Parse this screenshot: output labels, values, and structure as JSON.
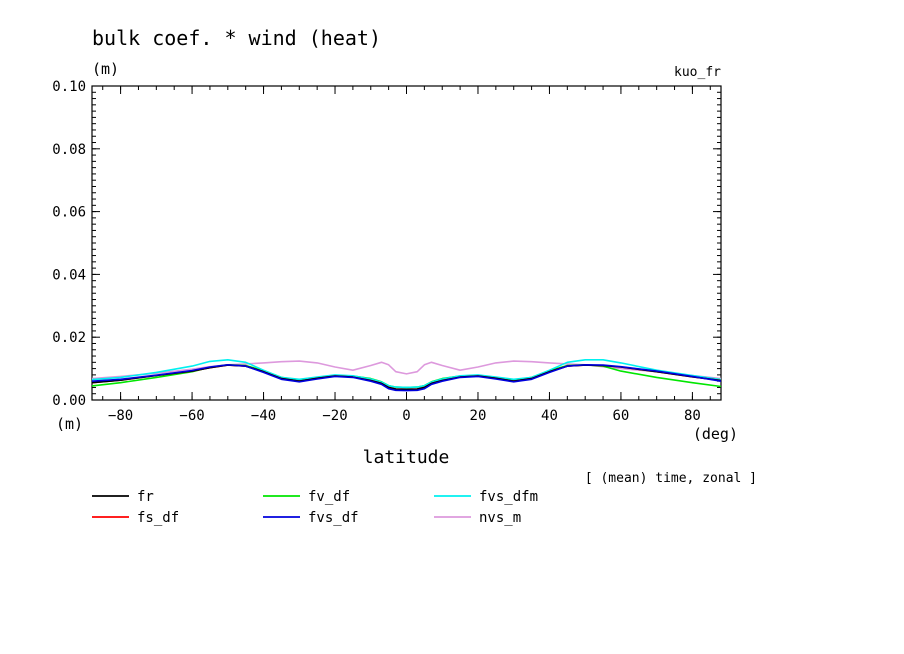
{
  "chart_data": {
    "type": "line",
    "title": "bulk coef. * wind (heat)",
    "ylabel": "(m)",
    "y_unit_bottom": "(m)",
    "top_right_label": "kuo_fr",
    "xlabel": "latitude",
    "x_unit": "(deg)",
    "annotation": "[ (mean) time, zonal ]",
    "xlim": [
      -88,
      88
    ],
    "ylim": [
      0,
      0.1
    ],
    "xticks": [
      -80,
      -60,
      -40,
      -20,
      0,
      20,
      40,
      60,
      80
    ],
    "yticks": [
      0.0,
      0.02,
      0.04,
      0.06,
      0.08,
      0.1
    ],
    "xtick_labels": [
      "−80",
      "−60",
      "−40",
      "−20",
      "0",
      "20",
      "40",
      "60",
      "80"
    ],
    "ytick_labels": [
      "0.00",
      "0.02",
      "0.04",
      "0.06",
      "0.08",
      "0.10"
    ],
    "grid": false,
    "legend_position": "below",
    "x": [
      -88,
      -80,
      -70,
      -60,
      -55,
      -50,
      -45,
      -40,
      -35,
      -30,
      -25,
      -20,
      -15,
      -10,
      -7,
      -5,
      -3,
      0,
      3,
      5,
      7,
      10,
      15,
      20,
      25,
      30,
      35,
      40,
      45,
      50,
      55,
      60,
      70,
      80,
      88
    ],
    "series": [
      {
        "name": "fr",
        "color": "#000000",
        "values": [
          0.0055,
          0.0063,
          0.0078,
          0.0092,
          0.0103,
          0.0111,
          0.0108,
          0.009,
          0.0068,
          0.006,
          0.0069,
          0.0076,
          0.0073,
          0.0062,
          0.0053,
          0.004,
          0.0035,
          0.0034,
          0.0035,
          0.004,
          0.0053,
          0.0062,
          0.0073,
          0.0076,
          0.0069,
          0.006,
          0.0068,
          0.009,
          0.0108,
          0.0111,
          0.011,
          0.0105,
          0.009,
          0.0074,
          0.0062
        ]
      },
      {
        "name": "fs_df",
        "color": "#ff0000",
        "values": [
          0.0055,
          0.0063,
          0.0078,
          0.0092,
          0.0103,
          0.0111,
          0.0108,
          0.009,
          0.0068,
          0.006,
          0.0069,
          0.0076,
          0.0073,
          0.0062,
          0.0053,
          0.004,
          0.0035,
          0.0034,
          0.0035,
          0.004,
          0.0053,
          0.0062,
          0.0073,
          0.0076,
          0.0069,
          0.006,
          0.0068,
          0.009,
          0.0108,
          0.0111,
          0.011,
          0.0105,
          0.009,
          0.0074,
          0.0062
        ]
      },
      {
        "name": "fv_df",
        "color": "#00e600",
        "values": [
          0.0045,
          0.0055,
          0.0072,
          0.009,
          0.0104,
          0.0112,
          0.011,
          0.0093,
          0.0072,
          0.0064,
          0.0072,
          0.0078,
          0.0076,
          0.0068,
          0.0058,
          0.0046,
          0.0041,
          0.004,
          0.0041,
          0.0046,
          0.0058,
          0.0068,
          0.0076,
          0.0078,
          0.0072,
          0.0064,
          0.0072,
          0.0093,
          0.011,
          0.0112,
          0.0108,
          0.0092,
          0.0072,
          0.0055,
          0.0043
        ]
      },
      {
        "name": "fvs_df",
        "color": "#0000dd",
        "values": [
          0.006,
          0.0066,
          0.0079,
          0.0094,
          0.0105,
          0.0112,
          0.0108,
          0.0088,
          0.0066,
          0.0058,
          0.0067,
          0.0075,
          0.0072,
          0.006,
          0.005,
          0.0036,
          0.0031,
          0.003,
          0.0031,
          0.0036,
          0.005,
          0.006,
          0.0072,
          0.0075,
          0.0067,
          0.0058,
          0.0066,
          0.0088,
          0.0108,
          0.0112,
          0.0111,
          0.0106,
          0.0092,
          0.0075,
          0.006
        ]
      },
      {
        "name": "fvs_dfm",
        "color": "#00f0f0",
        "values": [
          0.0065,
          0.0072,
          0.0088,
          0.0108,
          0.0123,
          0.0128,
          0.012,
          0.0095,
          0.0072,
          0.0066,
          0.0073,
          0.008,
          0.0077,
          0.0067,
          0.0057,
          0.0046,
          0.0041,
          0.004,
          0.0041,
          0.0046,
          0.0057,
          0.0067,
          0.0077,
          0.008,
          0.0073,
          0.0066,
          0.0072,
          0.0095,
          0.012,
          0.0128,
          0.0128,
          0.0118,
          0.0095,
          0.0078,
          0.0065
        ]
      },
      {
        "name": "nvs_m",
        "color": "#dd99dd",
        "values": [
          0.0068,
          0.0075,
          0.0085,
          0.0098,
          0.0106,
          0.0112,
          0.0115,
          0.0118,
          0.0122,
          0.0124,
          0.0118,
          0.0105,
          0.0095,
          0.011,
          0.012,
          0.0112,
          0.009,
          0.0083,
          0.009,
          0.0112,
          0.012,
          0.011,
          0.0095,
          0.0105,
          0.0118,
          0.0124,
          0.0122,
          0.0118,
          0.0115,
          0.0112,
          0.0106,
          0.01,
          0.009,
          0.0078,
          0.0068
        ]
      }
    ]
  }
}
